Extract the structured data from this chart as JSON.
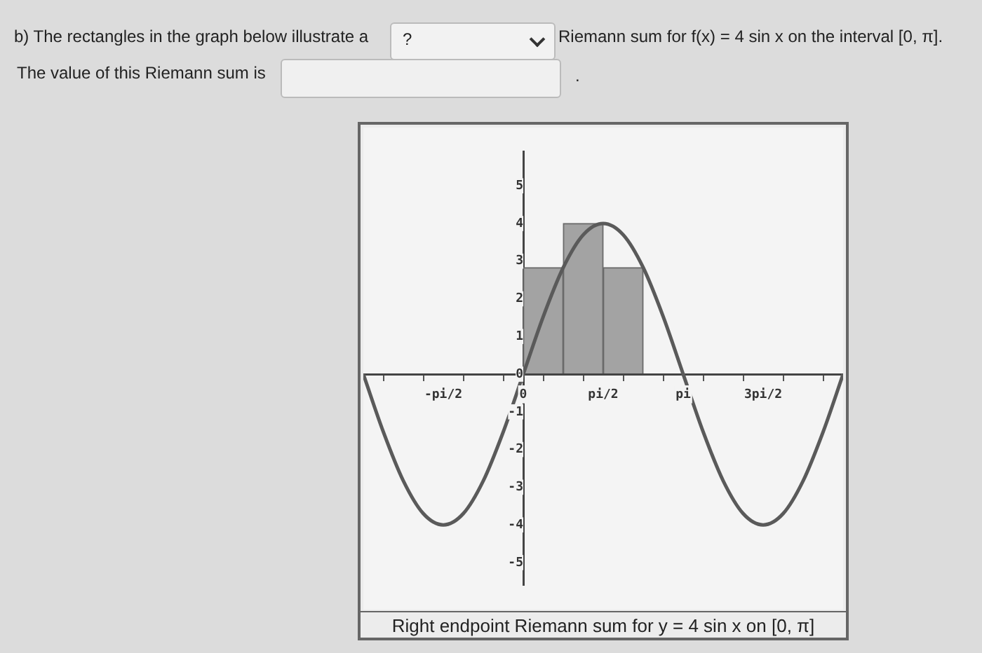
{
  "chart_data": {
    "type": "bar",
    "title": "Right endpoint Riemann sum for y = 4 sin x on [0, π]",
    "annotations": [
      "b) The rectangles in the graph below illustrate a",
      "?",
      "Riemann sum for f(x) = 4 sin x on the interval [0, π].",
      "The value of this Riemann sum is",
      "."
    ],
    "series": [
      {
        "type": "bar",
        "color": "#a3a3a3",
        "x": [
          0.3927,
          1.1781,
          1.9635
        ],
        "values": [
          2.83,
          4,
          2.83
        ]
      },
      {
        "type": "line",
        "color": "#5a5a5a",
        "marker": "none",
        "x": [
          -3.1416,
          -2.7489,
          -2.3562,
          -1.9635,
          -1.5708,
          -1.1781,
          -0.7854,
          -0.3927,
          0,
          0.3927,
          0.7854,
          1.1781,
          1.5708,
          1.9635,
          2.3562,
          2.7489,
          3.1416,
          3.5343,
          3.927,
          4.3197,
          4.7124,
          5.1051,
          5.4978,
          5.8905,
          6.2832
        ],
        "values": [
          0,
          -1.53,
          -2.83,
          -3.7,
          -4,
          -3.7,
          -2.83,
          -1.53,
          0,
          1.53,
          2.83,
          3.7,
          4,
          3.7,
          2.83,
          1.53,
          0,
          -1.53,
          -2.83,
          -3.7,
          -4,
          -3.7,
          -2.83,
          -1.53,
          0
        ]
      }
    ],
    "xlim": [
      -3.1416,
      6.2832
    ],
    "xticks": [
      {
        "value": -2.3562,
        "label": null
      },
      {
        "value": -1.5708,
        "label": "-pi/2"
      },
      {
        "value": -0.7854,
        "label": null
      },
      0,
      {
        "value": 0.7854,
        "label": null
      },
      {
        "value": 1.5708,
        "label": "pi/2"
      },
      {
        "value": 2.3562,
        "label": null
      },
      {
        "value": 3.1416,
        "label": "pi"
      },
      {
        "value": 3.927,
        "label": null
      },
      {
        "value": 4.7124,
        "label": "3pi/2"
      },
      {
        "value": 5.4978,
        "label": null
      }
    ],
    "ylim": [
      -5.6,
      5.9
    ],
    "yticks": [
      -5,
      -4,
      -3,
      -2,
      -1,
      0,
      1,
      2,
      3,
      4,
      5
    ],
    "grid": false,
    "legend": false
  }
}
